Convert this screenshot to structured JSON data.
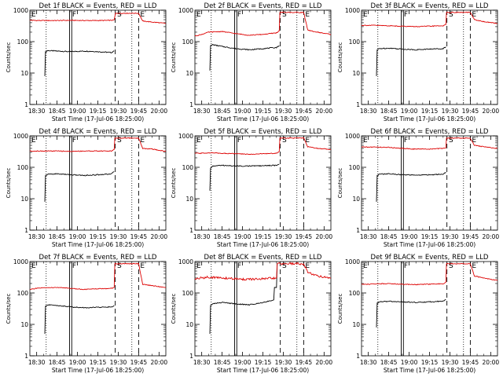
{
  "shared": {
    "ylabel": "Counts/sec",
    "xlabel": "Start Time (17-Jul-06 18:25:00)",
    "x_ticks": [
      "18:30",
      "18:45",
      "19:00",
      "19:15",
      "19:30",
      "19:45",
      "20:00"
    ],
    "y_ticks": [
      "1",
      "10",
      "100",
      "1000"
    ],
    "legend_black": "Events",
    "legend_red": "LLD",
    "colors": {
      "events": "#000000",
      "lld": "#dd0000",
      "axes": "#000000"
    }
  },
  "chart_data": [
    {
      "type": "line",
      "title": "Det 1f BLACK = Events, RED = LLD",
      "x_unit": "minutes after 18:25:00",
      "xlim": [
        0,
        100
      ],
      "ylim": [
        1,
        1000
      ],
      "yscale": "log",
      "markers": [
        {
          "label": "E",
          "x": 0
        },
        {
          "label": "F",
          "x": 30
        },
        {
          "label": "S",
          "x": 63
        },
        {
          "label": "E",
          "x": 80
        }
      ],
      "series": [
        {
          "name": "Events",
          "x": [
            11,
            12,
            13,
            20,
            30,
            40,
            50,
            60,
            62
          ],
          "y": [
            8,
            48,
            52,
            50,
            48,
            50,
            48,
            45,
            50
          ]
        },
        {
          "name": "LLD",
          "x": [
            0,
            5,
            10,
            20,
            30,
            40,
            50,
            60,
            62,
            63,
            80,
            83,
            90,
            100
          ],
          "y": [
            480,
            470,
            470,
            470,
            475,
            470,
            470,
            475,
            490,
            800,
            800,
            450,
            420,
            380
          ]
        }
      ]
    },
    {
      "type": "line",
      "title": "Det 2f BLACK = Events, RED = LLD",
      "x_unit": "minutes after 18:25:00",
      "xlim": [
        0,
        100
      ],
      "ylim": [
        1,
        1000
      ],
      "yscale": "log",
      "markers": [
        {
          "label": "E",
          "x": 0
        },
        {
          "label": "F",
          "x": 30
        },
        {
          "label": "S",
          "x": 63
        },
        {
          "label": "E",
          "x": 80
        }
      ],
      "series": [
        {
          "name": "Events",
          "x": [
            11,
            12,
            13,
            20,
            30,
            40,
            50,
            60,
            62
          ],
          "y": [
            12,
            75,
            80,
            70,
            60,
            55,
            60,
            65,
            75
          ]
        },
        {
          "name": "LLD",
          "x": [
            0,
            5,
            10,
            20,
            30,
            40,
            50,
            60,
            62,
            63,
            80,
            83,
            90,
            100
          ],
          "y": [
            150,
            170,
            200,
            210,
            180,
            160,
            170,
            190,
            220,
            850,
            850,
            230,
            200,
            170
          ]
        }
      ]
    },
    {
      "type": "line",
      "title": "Det 3f BLACK = Events, RED = LLD",
      "x_unit": "minutes after 18:25:00",
      "xlim": [
        0,
        100
      ],
      "ylim": [
        1,
        1000
      ],
      "yscale": "log",
      "markers": [
        {
          "label": "E",
          "x": 0
        },
        {
          "label": "F",
          "x": 30
        },
        {
          "label": "S",
          "x": 63
        },
        {
          "label": "E",
          "x": 80
        }
      ],
      "series": [
        {
          "name": "Events",
          "x": [
            11,
            12,
            13,
            20,
            30,
            40,
            50,
            60,
            62
          ],
          "y": [
            8,
            55,
            60,
            62,
            58,
            55,
            58,
            60,
            68
          ]
        },
        {
          "name": "LLD",
          "x": [
            0,
            5,
            10,
            20,
            30,
            40,
            50,
            60,
            62,
            63,
            80,
            83,
            90,
            100
          ],
          "y": [
            330,
            330,
            330,
            320,
            310,
            300,
            310,
            320,
            350,
            850,
            850,
            500,
            430,
            380
          ]
        }
      ]
    },
    {
      "type": "line",
      "title": "Det 4f BLACK = Events, RED = LLD",
      "x_unit": "minutes after 18:25:00",
      "xlim": [
        0,
        100
      ],
      "ylim": [
        1,
        1000
      ],
      "yscale": "log",
      "markers": [
        {
          "label": "E",
          "x": 0
        },
        {
          "label": "F",
          "x": 30
        },
        {
          "label": "S",
          "x": 63
        },
        {
          "label": "E",
          "x": 80
        }
      ],
      "series": [
        {
          "name": "Events",
          "x": [
            11,
            12,
            13,
            20,
            30,
            40,
            50,
            60,
            62
          ],
          "y": [
            8,
            55,
            60,
            62,
            58,
            55,
            58,
            62,
            72
          ]
        },
        {
          "name": "LLD",
          "x": [
            0,
            5,
            10,
            20,
            30,
            40,
            50,
            60,
            62,
            63,
            80,
            83,
            90,
            100
          ],
          "y": [
            330,
            330,
            330,
            330,
            320,
            330,
            330,
            330,
            370,
            850,
            850,
            400,
            380,
            320
          ]
        }
      ]
    },
    {
      "type": "line",
      "title": "Det 5f BLACK = Events, RED = LLD",
      "x_unit": "minutes after 18:25:00",
      "xlim": [
        0,
        100
      ],
      "ylim": [
        1,
        1000
      ],
      "yscale": "log",
      "markers": [
        {
          "label": "E",
          "x": 0
        },
        {
          "label": "F",
          "x": 30
        },
        {
          "label": "S",
          "x": 63
        },
        {
          "label": "E",
          "x": 80
        }
      ],
      "series": [
        {
          "name": "Events",
          "x": [
            11,
            12,
            13,
            20,
            30,
            40,
            50,
            60,
            62
          ],
          "y": [
            18,
            95,
            110,
            115,
            110,
            110,
            112,
            115,
            125
          ]
        },
        {
          "name": "LLD",
          "x": [
            0,
            5,
            10,
            20,
            30,
            40,
            50,
            60,
            62,
            63,
            80,
            83,
            90,
            100
          ],
          "y": [
            280,
            280,
            290,
            280,
            270,
            260,
            270,
            280,
            320,
            850,
            850,
            450,
            400,
            370
          ]
        }
      ]
    },
    {
      "type": "line",
      "title": "Det 6f BLACK = Events, RED = LLD",
      "x_unit": "minutes after 18:25:00",
      "xlim": [
        0,
        100
      ],
      "ylim": [
        1,
        1000
      ],
      "yscale": "log",
      "markers": [
        {
          "label": "E",
          "x": 0
        },
        {
          "label": "F",
          "x": 30
        },
        {
          "label": "S",
          "x": 63
        },
        {
          "label": "E",
          "x": 80
        }
      ],
      "series": [
        {
          "name": "Events",
          "x": [
            11,
            12,
            13,
            20,
            30,
            40,
            50,
            60,
            62
          ],
          "y": [
            8,
            55,
            60,
            62,
            58,
            56,
            58,
            60,
            70
          ]
        },
        {
          "name": "LLD",
          "x": [
            0,
            5,
            10,
            20,
            30,
            40,
            50,
            60,
            62,
            63,
            80,
            83,
            90,
            100
          ],
          "y": [
            440,
            440,
            440,
            430,
            400,
            380,
            380,
            400,
            420,
            850,
            850,
            500,
            450,
            400
          ]
        }
      ]
    },
    {
      "type": "line",
      "title": "Det 7f BLACK = Events, RED = LLD",
      "x_unit": "minutes after 18:25:00",
      "xlim": [
        0,
        100
      ],
      "ylim": [
        1,
        1000
      ],
      "yscale": "log",
      "markers": [
        {
          "label": "E",
          "x": 0
        },
        {
          "label": "F",
          "x": 30
        },
        {
          "label": "S",
          "x": 63
        },
        {
          "label": "E",
          "x": 80
        }
      ],
      "series": [
        {
          "name": "Events",
          "x": [
            11,
            12,
            13,
            20,
            30,
            40,
            50,
            60,
            62
          ],
          "y": [
            5,
            38,
            42,
            40,
            36,
            34,
            35,
            36,
            40
          ]
        },
        {
          "name": "LLD",
          "x": [
            0,
            5,
            10,
            20,
            30,
            40,
            50,
            60,
            62,
            63,
            80,
            83,
            90,
            100
          ],
          "y": [
            130,
            140,
            145,
            150,
            140,
            130,
            135,
            140,
            150,
            850,
            850,
            190,
            170,
            150
          ]
        }
      ]
    },
    {
      "type": "line",
      "title": "Det 8f BLACK = Events, RED = LLD",
      "x_unit": "minutes after 18:25:00",
      "xlim": [
        0,
        100
      ],
      "ylim": [
        1,
        1000
      ],
      "yscale": "log",
      "markers": [
        {
          "label": "E",
          "x": 0
        },
        {
          "label": "F",
          "x": 30
        },
        {
          "label": "S",
          "x": 63
        },
        {
          "label": "E",
          "x": 80
        }
      ],
      "series": [
        {
          "name": "Events",
          "x": [
            11,
            12,
            13,
            20,
            30,
            40,
            50,
            58,
            60,
            61
          ],
          "y": [
            5,
            40,
            45,
            50,
            45,
            42,
            50,
            60,
            150,
            850
          ]
        },
        {
          "name": "LLD",
          "x": [
            0,
            5,
            10,
            20,
            30,
            40,
            50,
            60,
            61,
            63,
            80,
            83,
            90,
            100
          ],
          "y": [
            280,
            300,
            320,
            300,
            280,
            270,
            280,
            300,
            850,
            850,
            850,
            450,
            350,
            300
          ]
        }
      ]
    },
    {
      "type": "line",
      "title": "Det 9f BLACK = Events, RED = LLD",
      "x_unit": "minutes after 18:25:00",
      "xlim": [
        0,
        100
      ],
      "ylim": [
        1,
        1000
      ],
      "yscale": "log",
      "markers": [
        {
          "label": "E",
          "x": 0
        },
        {
          "label": "F",
          "x": 30
        },
        {
          "label": "S",
          "x": 63
        },
        {
          "label": "E",
          "x": 80
        }
      ],
      "series": [
        {
          "name": "Events",
          "x": [
            11,
            12,
            13,
            20,
            30,
            40,
            50,
            60,
            62
          ],
          "y": [
            8,
            48,
            52,
            54,
            52,
            50,
            52,
            55,
            62
          ]
        },
        {
          "name": "LLD",
          "x": [
            0,
            5,
            10,
            20,
            30,
            40,
            50,
            60,
            62,
            63,
            80,
            83,
            90,
            100
          ],
          "y": [
            190,
            190,
            195,
            200,
            190,
            185,
            190,
            195,
            220,
            850,
            850,
            350,
            300,
            250
          ]
        }
      ]
    }
  ]
}
